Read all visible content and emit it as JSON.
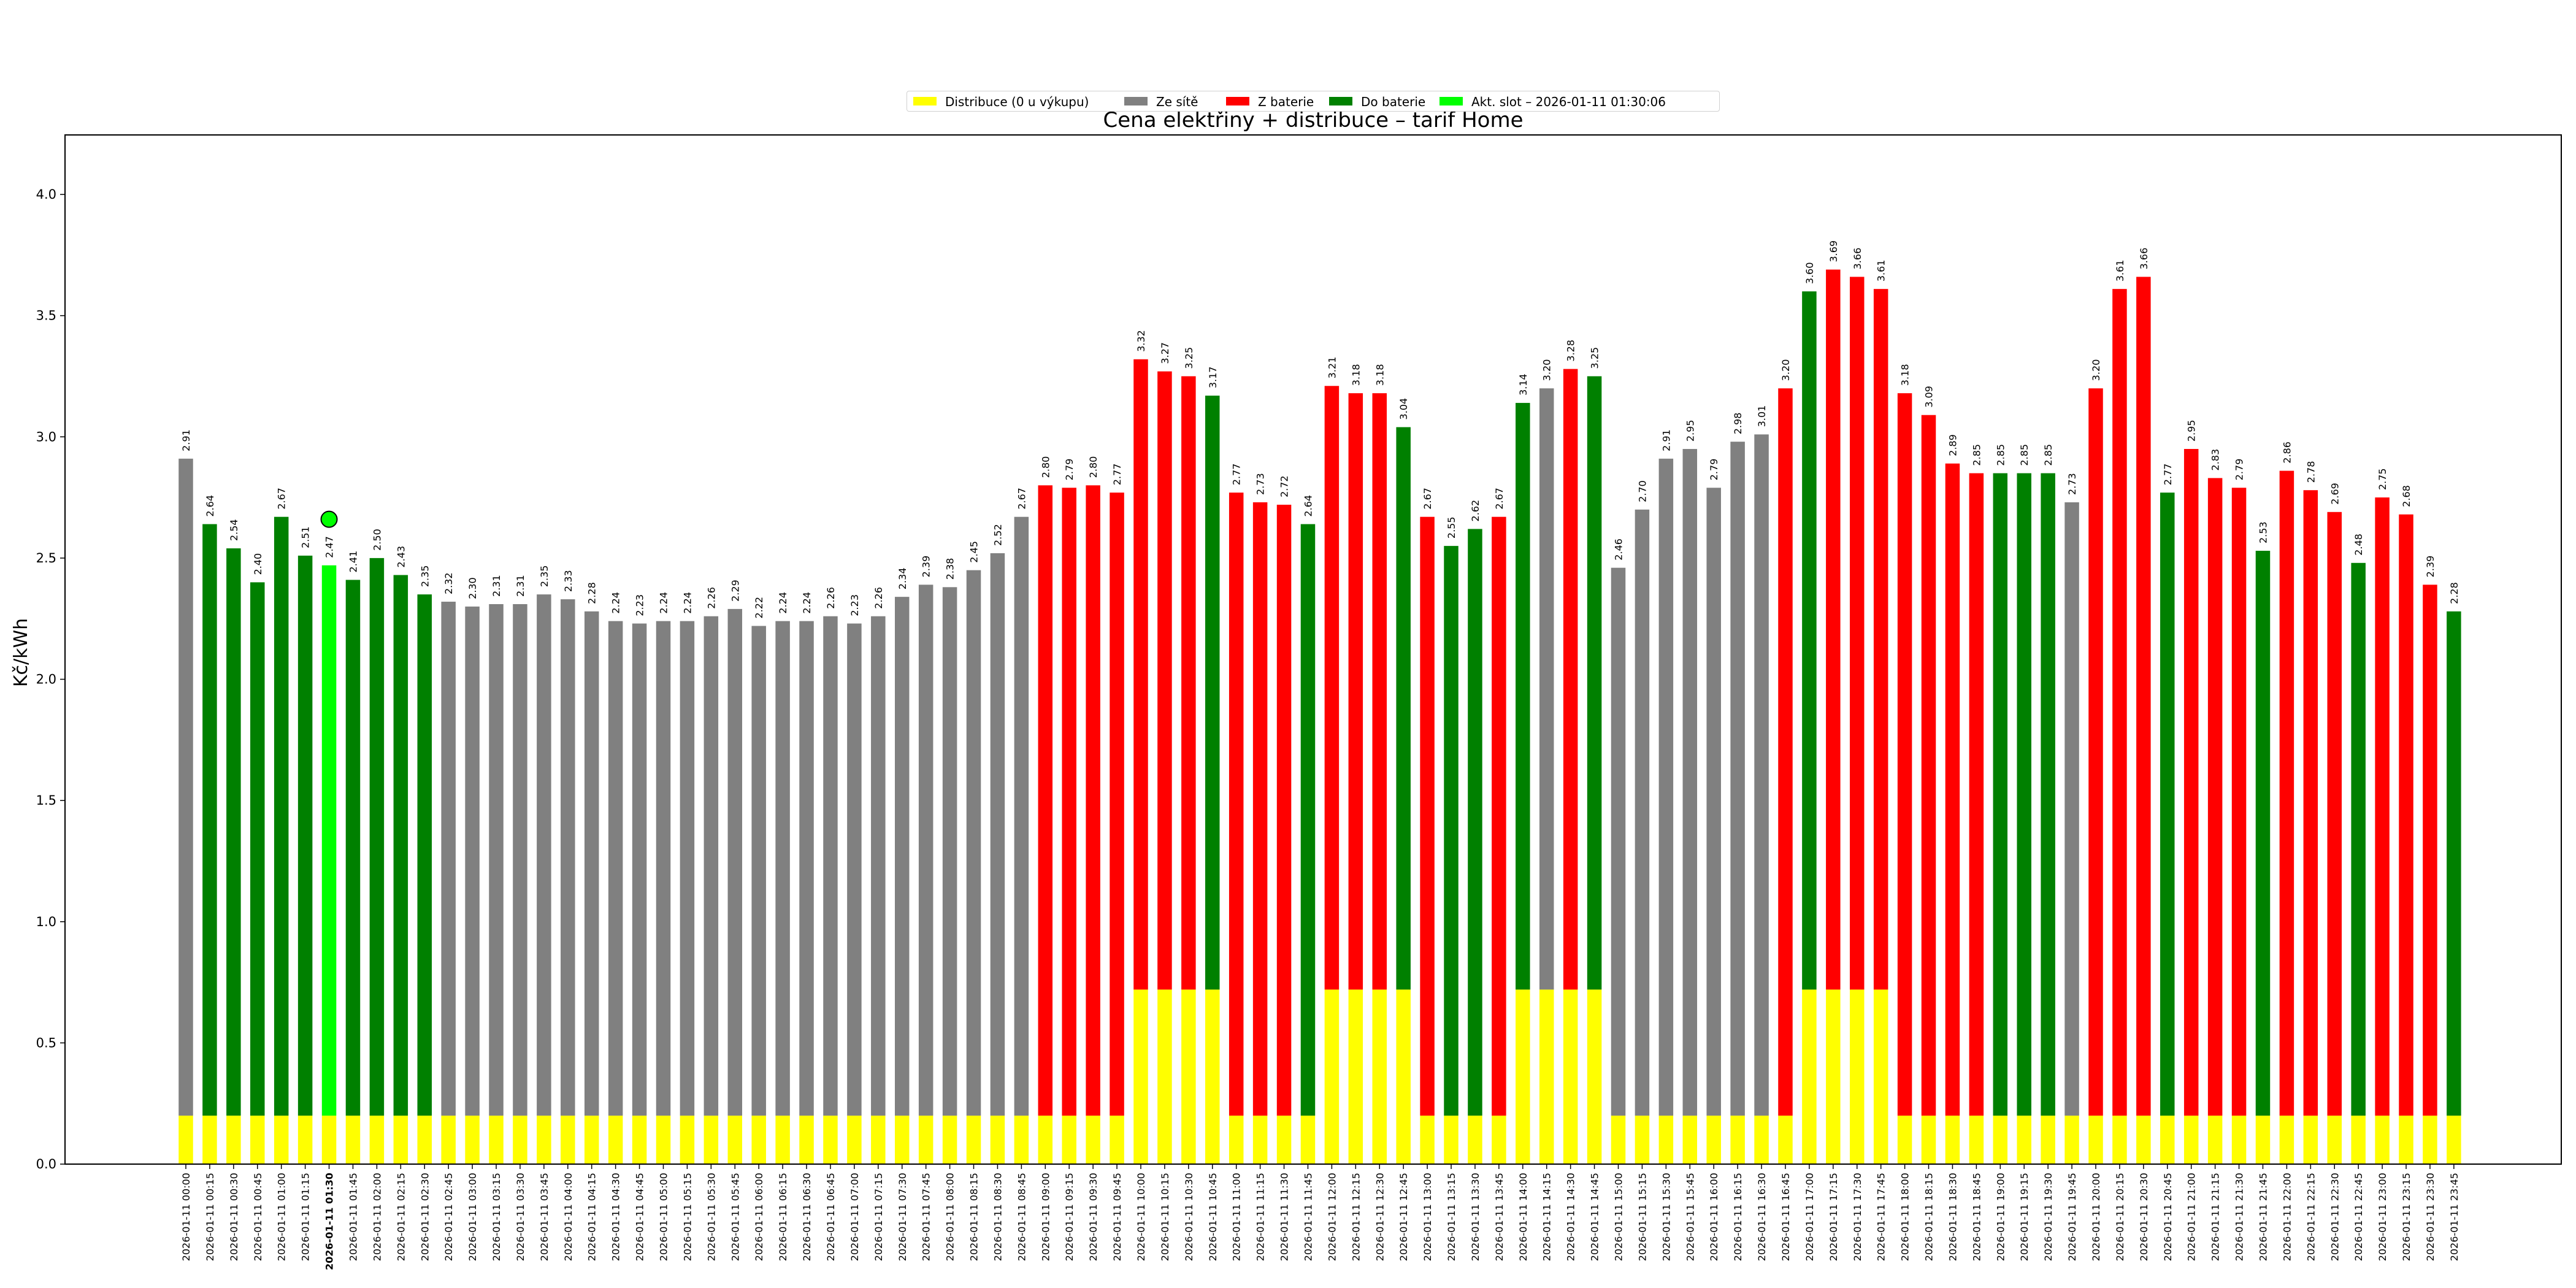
{
  "chart_data": {
    "type": "bar",
    "stacked": true,
    "title": "Cena elektřiny + distribuce – tarif Home",
    "xlabel": "",
    "ylabel": "Kč/kWh",
    "ylim": [
      0,
      4.25
    ],
    "yticks": [
      "0.0",
      "0.5",
      "1.0",
      "1.5",
      "2.0",
      "2.5",
      "3.0",
      "3.5",
      "4.0"
    ],
    "grid": false,
    "legend_position": "top-center",
    "legend": [
      {
        "key": "dist",
        "label": "Distribuce (0 u výkupu)",
        "color": "#ffff00"
      },
      {
        "key": "grid",
        "label": "Ze sítě",
        "color": "#808080"
      },
      {
        "key": "from_batt",
        "label": "Z baterie",
        "color": "#ff0000"
      },
      {
        "key": "to_batt",
        "label": "Do baterie",
        "color": "#008000"
      },
      {
        "key": "current",
        "label": "Akt. slot – 2026-01-11 01:30:06",
        "color": "#00ff00"
      }
    ],
    "current_slot": "2026-01-11 01:30",
    "current_slot_index": 6,
    "current_slot_marker_value": 2.66,
    "categories": [
      "2026-01-11 00:00",
      "2026-01-11 00:15",
      "2026-01-11 00:30",
      "2026-01-11 00:45",
      "2026-01-11 01:00",
      "2026-01-11 01:15",
      "2026-01-11 01:30",
      "2026-01-11 01:45",
      "2026-01-11 02:00",
      "2026-01-11 02:15",
      "2026-01-11 02:30",
      "2026-01-11 02:45",
      "2026-01-11 03:00",
      "2026-01-11 03:15",
      "2026-01-11 03:30",
      "2026-01-11 03:45",
      "2026-01-11 04:00",
      "2026-01-11 04:15",
      "2026-01-11 04:30",
      "2026-01-11 04:45",
      "2026-01-11 05:00",
      "2026-01-11 05:15",
      "2026-01-11 05:30",
      "2026-01-11 05:45",
      "2026-01-11 06:00",
      "2026-01-11 06:15",
      "2026-01-11 06:30",
      "2026-01-11 06:45",
      "2026-01-11 07:00",
      "2026-01-11 07:15",
      "2026-01-11 07:30",
      "2026-01-11 07:45",
      "2026-01-11 08:00",
      "2026-01-11 08:15",
      "2026-01-11 08:30",
      "2026-01-11 08:45",
      "2026-01-11 09:00",
      "2026-01-11 09:15",
      "2026-01-11 09:30",
      "2026-01-11 09:45",
      "2026-01-11 10:00",
      "2026-01-11 10:15",
      "2026-01-11 10:30",
      "2026-01-11 10:45",
      "2026-01-11 11:00",
      "2026-01-11 11:15",
      "2026-01-11 11:30",
      "2026-01-11 11:45",
      "2026-01-11 12:00",
      "2026-01-11 12:15",
      "2026-01-11 12:30",
      "2026-01-11 12:45",
      "2026-01-11 13:00",
      "2026-01-11 13:15",
      "2026-01-11 13:30",
      "2026-01-11 13:45",
      "2026-01-11 14:00",
      "2026-01-11 14:15",
      "2026-01-11 14:30",
      "2026-01-11 14:45",
      "2026-01-11 15:00",
      "2026-01-11 15:15",
      "2026-01-11 15:30",
      "2026-01-11 15:45",
      "2026-01-11 16:00",
      "2026-01-11 16:15",
      "2026-01-11 16:30",
      "2026-01-11 16:45",
      "2026-01-11 17:00",
      "2026-01-11 17:15",
      "2026-01-11 17:30",
      "2026-01-11 17:45",
      "2026-01-11 18:00",
      "2026-01-11 18:15",
      "2026-01-11 18:30",
      "2026-01-11 18:45",
      "2026-01-11 19:00",
      "2026-01-11 19:15",
      "2026-01-11 19:30",
      "2026-01-11 19:45",
      "2026-01-11 20:00",
      "2026-01-11 20:15",
      "2026-01-11 20:30",
      "2026-01-11 20:45",
      "2026-01-11 21:00",
      "2026-01-11 21:15",
      "2026-01-11 21:30",
      "2026-01-11 21:45",
      "2026-01-11 22:00",
      "2026-01-11 22:15",
      "2026-01-11 22:30",
      "2026-01-11 22:45",
      "2026-01-11 23:00",
      "2026-01-11 23:15",
      "2026-01-11 23:30",
      "2026-01-11 23:45"
    ],
    "totals": [
      2.91,
      2.64,
      2.54,
      2.4,
      2.67,
      2.51,
      2.47,
      2.41,
      2.5,
      2.43,
      2.35,
      2.32,
      2.3,
      2.31,
      2.31,
      2.35,
      2.33,
      2.28,
      2.24,
      2.23,
      2.24,
      2.24,
      2.26,
      2.29,
      2.22,
      2.24,
      2.24,
      2.26,
      2.23,
      2.26,
      2.34,
      2.39,
      2.38,
      2.45,
      2.52,
      2.67,
      2.8,
      2.79,
      2.8,
      2.77,
      3.32,
      3.27,
      3.25,
      3.17,
      2.77,
      2.73,
      2.72,
      2.64,
      3.21,
      3.18,
      3.18,
      3.04,
      2.67,
      2.55,
      2.62,
      2.67,
      3.14,
      3.2,
      3.28,
      3.25,
      2.46,
      2.7,
      2.91,
      2.95,
      2.79,
      2.98,
      3.01,
      3.2,
      3.6,
      3.69,
      3.66,
      3.61,
      3.18,
      3.09,
      2.89,
      2.85,
      2.85,
      2.85,
      2.85,
      2.73,
      3.2,
      3.61,
      3.66,
      2.77,
      2.95,
      2.83,
      2.79,
      2.53,
      2.86,
      2.78,
      2.69,
      2.48,
      2.75,
      2.68,
      2.39,
      2.28
    ],
    "value_labels": [
      "2.91",
      "2.64",
      "2.54",
      "2.40",
      "2.67",
      "2.51",
      "2.47",
      "2.41",
      "2.50",
      "2.43",
      "2.35",
      "2.32",
      "2.30",
      "2.31",
      "2.31",
      "2.35",
      "2.33",
      "2.28",
      "2.24",
      "2.23",
      "2.24",
      "2.24",
      "2.26",
      "2.29",
      "2.22",
      "2.24",
      "2.24",
      "2.26",
      "2.23",
      "2.26",
      "2.34",
      "2.39",
      "2.38",
      "2.45",
      "2.52",
      "2.67",
      "2.80",
      "2.79",
      "2.80",
      "2.77",
      "3.32",
      "3.27",
      "3.25",
      "3.17",
      "2.77",
      "2.73",
      "2.72",
      "2.64",
      "3.21",
      "3.18",
      "3.18",
      "3.04",
      "2.67",
      "2.55",
      "2.62",
      "2.67",
      "3.14",
      "3.20",
      "3.28",
      "3.25",
      "2.46",
      "2.70",
      "2.91",
      "2.95",
      "2.79",
      "2.98",
      "3.01",
      "3.20",
      "3.60",
      "3.69",
      "3.66",
      "3.61",
      "3.18",
      "3.09",
      "2.89",
      "2.85",
      "2.85",
      "2.85",
      "2.85",
      "2.73",
      "3.20",
      "3.61",
      "3.66",
      "2.77",
      "2.95",
      "2.83",
      "2.79",
      "2.53",
      "2.86",
      "2.78",
      "2.69",
      "2.48",
      "2.75",
      "2.68",
      "2.39",
      "2.28"
    ],
    "distribution": [
      0.2,
      0.2,
      0.2,
      0.2,
      0.2,
      0.2,
      0.2,
      0.2,
      0.2,
      0.2,
      0.2,
      0.2,
      0.2,
      0.2,
      0.2,
      0.2,
      0.2,
      0.2,
      0.2,
      0.2,
      0.2,
      0.2,
      0.2,
      0.2,
      0.2,
      0.2,
      0.2,
      0.2,
      0.2,
      0.2,
      0.2,
      0.2,
      0.2,
      0.2,
      0.2,
      0.2,
      0.2,
      0.2,
      0.2,
      0.2,
      0.72,
      0.72,
      0.72,
      0.72,
      0.2,
      0.2,
      0.2,
      0.2,
      0.72,
      0.72,
      0.72,
      0.72,
      0.2,
      0.2,
      0.2,
      0.2,
      0.72,
      0.72,
      0.72,
      0.72,
      0.2,
      0.2,
      0.2,
      0.2,
      0.2,
      0.2,
      0.2,
      0.2,
      0.72,
      0.72,
      0.72,
      0.72,
      0.2,
      0.2,
      0.2,
      0.2,
      0.2,
      0.2,
      0.2,
      0.2,
      0.2,
      0.2,
      0.2,
      0.2,
      0.2,
      0.2,
      0.2,
      0.2,
      0.2,
      0.2,
      0.2,
      0.2,
      0.2,
      0.2,
      0.2,
      0.2
    ],
    "mode": [
      "grid",
      "to_batt",
      "to_batt",
      "to_batt",
      "to_batt",
      "to_batt",
      "current",
      "to_batt",
      "to_batt",
      "to_batt",
      "to_batt",
      "grid",
      "grid",
      "grid",
      "grid",
      "grid",
      "grid",
      "grid",
      "grid",
      "grid",
      "grid",
      "grid",
      "grid",
      "grid",
      "grid",
      "grid",
      "grid",
      "grid",
      "grid",
      "grid",
      "grid",
      "grid",
      "grid",
      "grid",
      "grid",
      "grid",
      "from_batt",
      "from_batt",
      "from_batt",
      "from_batt",
      "from_batt",
      "from_batt",
      "from_batt",
      "to_batt",
      "from_batt",
      "from_batt",
      "from_batt",
      "to_batt",
      "from_batt",
      "from_batt",
      "from_batt",
      "to_batt",
      "from_batt",
      "to_batt",
      "to_batt",
      "from_batt",
      "to_batt",
      "grid",
      "from_batt",
      "to_batt",
      "grid",
      "grid",
      "grid",
      "grid",
      "grid",
      "grid",
      "grid",
      "from_batt",
      "to_batt",
      "from_batt",
      "from_batt",
      "from_batt",
      "from_batt",
      "from_batt",
      "from_batt",
      "from_batt",
      "to_batt",
      "to_batt",
      "to_batt",
      "grid",
      "from_batt",
      "from_batt",
      "from_batt",
      "to_batt",
      "from_batt",
      "from_batt",
      "from_batt",
      "to_batt",
      "from_batt",
      "from_batt",
      "from_batt",
      "to_batt",
      "from_batt",
      "from_batt",
      "from_batt",
      "to_batt"
    ]
  }
}
